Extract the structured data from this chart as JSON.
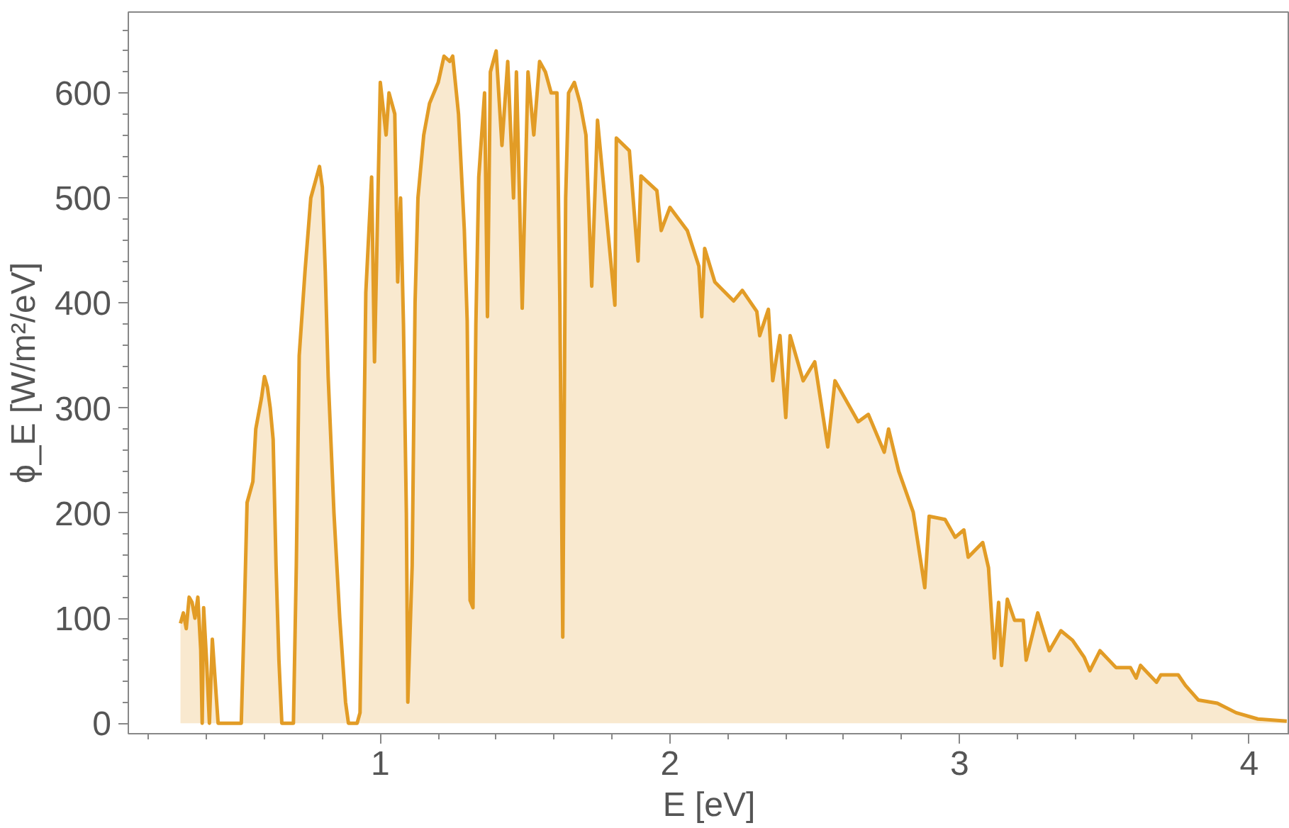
{
  "chart_data": {
    "type": "area",
    "xlabel": "E [eV]",
    "ylabel": "ϕ_E [W/m²/eV]",
    "xlim": [
      0.13,
      4.14
    ],
    "ylim": [
      -10,
      677
    ],
    "xticks": [
      {
        "value": 0.2,
        "label": null
      },
      {
        "value": 0.4,
        "label": null
      },
      {
        "value": 0.6,
        "label": null
      },
      {
        "value": 0.8,
        "label": null
      },
      1,
      {
        "value": 1.2,
        "label": null
      },
      {
        "value": 1.4,
        "label": null
      },
      {
        "value": 1.6,
        "label": null
      },
      {
        "value": 1.8,
        "label": null
      },
      2,
      {
        "value": 2.2,
        "label": null
      },
      {
        "value": 2.4,
        "label": null
      },
      {
        "value": 2.6,
        "label": null
      },
      {
        "value": 2.8,
        "label": null
      },
      3,
      {
        "value": 3.2,
        "label": null
      },
      {
        "value": 3.4,
        "label": null
      },
      {
        "value": 3.6,
        "label": null
      },
      {
        "value": 3.8,
        "label": null
      },
      4
    ],
    "yticks": [
      0,
      {
        "value": 20,
        "label": null
      },
      {
        "value": 40,
        "label": null
      },
      {
        "value": 60,
        "label": null
      },
      {
        "value": 80,
        "label": null
      },
      100,
      {
        "value": 120,
        "label": null
      },
      {
        "value": 140,
        "label": null
      },
      {
        "value": 160,
        "label": null
      },
      {
        "value": 180,
        "label": null
      },
      200,
      {
        "value": 220,
        "label": null
      },
      {
        "value": 240,
        "label": null
      },
      {
        "value": 260,
        "label": null
      },
      {
        "value": 280,
        "label": null
      },
      300,
      {
        "value": 320,
        "label": null
      },
      {
        "value": 340,
        "label": null
      },
      {
        "value": 360,
        "label": null
      },
      {
        "value": 380,
        "label": null
      },
      400,
      {
        "value": 420,
        "label": null
      },
      {
        "value": 440,
        "label": null
      },
      {
        "value": 460,
        "label": null
      },
      {
        "value": 480,
        "label": null
      },
      500,
      {
        "value": 520,
        "label": null
      },
      {
        "value": 540,
        "label": null
      },
      {
        "value": 560,
        "label": null
      },
      {
        "value": 580,
        "label": null
      },
      600,
      {
        "value": 620,
        "label": null
      },
      {
        "value": 640,
        "label": null
      },
      {
        "value": 660,
        "label": null
      }
    ],
    "grid": false,
    "marker": "none",
    "line_style": "solid",
    "series": [
      {
        "color": "#e29c26",
        "x": [
          0.31,
          0.32,
          0.33,
          0.34,
          0.35,
          0.36,
          0.37,
          0.38,
          0.385,
          0.39,
          0.4,
          0.41,
          0.42,
          0.43,
          0.44,
          0.5,
          0.52,
          0.53,
          0.54,
          0.56,
          0.57,
          0.59,
          0.6,
          0.61,
          0.62,
          0.63,
          0.64,
          0.65,
          0.66,
          0.7,
          0.71,
          0.72,
          0.74,
          0.76,
          0.78,
          0.79,
          0.8,
          0.81,
          0.82,
          0.84,
          0.86,
          0.88,
          0.89,
          0.92,
          0.93,
          0.94,
          0.95,
          0.97,
          0.98,
          1.0,
          1.02,
          1.03,
          1.05,
          1.06,
          1.07,
          1.08,
          1.09,
          1.095,
          1.11,
          1.12,
          1.13,
          1.15,
          1.17,
          1.2,
          1.22,
          1.24,
          1.25,
          1.27,
          1.29,
          1.3,
          1.31,
          1.32,
          1.33,
          1.34,
          1.36,
          1.37,
          1.38,
          1.4,
          1.42,
          1.44,
          1.46,
          1.47,
          1.49,
          1.51,
          1.53,
          1.55,
          1.57,
          1.59,
          1.61,
          1.62,
          1.63,
          1.64,
          1.65,
          1.67,
          1.69,
          1.71,
          1.73,
          1.75,
          1.81,
          1.815,
          1.86,
          1.89,
          1.9,
          1.955,
          1.97,
          2.0,
          2.06,
          2.1,
          2.11,
          2.12,
          2.155,
          2.22,
          2.25,
          2.3,
          2.31,
          2.34,
          2.355,
          2.38,
          2.4,
          2.415,
          2.46,
          2.5,
          2.545,
          2.57,
          2.65,
          2.685,
          2.74,
          2.755,
          2.79,
          2.84,
          2.88,
          2.895,
          2.95,
          2.985,
          3.015,
          3.03,
          3.08,
          3.1,
          3.12,
          3.135,
          3.145,
          3.165,
          3.19,
          3.22,
          3.23,
          3.27,
          3.31,
          3.35,
          3.39,
          3.43,
          3.45,
          3.485,
          3.54,
          3.59,
          3.61,
          3.625,
          3.68,
          3.695,
          3.755,
          3.78,
          3.825,
          3.89,
          3.955,
          4.03,
          4.13
        ],
        "values": [
          95,
          105,
          90,
          120,
          115,
          100,
          120,
          70,
          0,
          110,
          60,
          0,
          80,
          40,
          0,
          0,
          0,
          100,
          210,
          230,
          280,
          310,
          330,
          320,
          300,
          270,
          150,
          60,
          0,
          0,
          150,
          350,
          430,
          500,
          520,
          530,
          510,
          430,
          330,
          200,
          100,
          20,
          0,
          0,
          10,
          200,
          410,
          520,
          344,
          610,
          560,
          600,
          580,
          420,
          500,
          380,
          200,
          20,
          150,
          400,
          500,
          560,
          590,
          610,
          635,
          630,
          635,
          580,
          470,
          383,
          117,
          110,
          380,
          520,
          600,
          387,
          620,
          640,
          550,
          630,
          500,
          620,
          395,
          620,
          560,
          630,
          620,
          600,
          600,
          400,
          82,
          500,
          600,
          610,
          590,
          560,
          416,
          574,
          398,
          557,
          545,
          440,
          521,
          507,
          469,
          491,
          469,
          435,
          387,
          452,
          420,
          402,
          412,
          392,
          369,
          394,
          326,
          369,
          291,
          369,
          326,
          344,
          263,
          326,
          287,
          294,
          258,
          280,
          240,
          201,
          129,
          197,
          194,
          177,
          184,
          158,
          172,
          148,
          62,
          115,
          55,
          118,
          98,
          98,
          60,
          105,
          69,
          88,
          79,
          63,
          50,
          69,
          53,
          53,
          43,
          55,
          39,
          46,
          46,
          36,
          22,
          19,
          10,
          4,
          2
        ]
      }
    ]
  }
}
